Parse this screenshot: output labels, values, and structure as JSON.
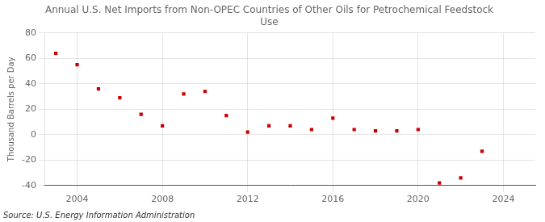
{
  "chart_data": {
    "type": "scatter",
    "title": "Annual U.S. Net Imports from Non-OPEC Countries of Other Oils for Petrochemical Feedstock\nUse",
    "y_label": "Thousand Barrels per Day",
    "annotations": [
      "Source: U.S. Energy Information Administration"
    ],
    "x": [
      2003,
      2004,
      2005,
      2006,
      2007,
      2008,
      2009,
      2010,
      2011,
      2012,
      2013,
      2014,
      2015,
      2016,
      2017,
      2018,
      2019,
      2020,
      2021,
      2022,
      2023
    ],
    "values": [
      64,
      55,
      36,
      29,
      16,
      7,
      32,
      34,
      15,
      2,
      7,
      7,
      4,
      13,
      4,
      3,
      3,
      4,
      -38,
      -34,
      -13
    ],
    "color": "#cc0000",
    "marker": "square",
    "xlim": [
      2002.5,
      2025.5
    ],
    "xticks": [
      2004,
      2008,
      2012,
      2016,
      2020,
      2024
    ],
    "ylim": [
      -40,
      80
    ],
    "yticks": [
      -40,
      -20,
      0,
      20,
      40,
      60,
      80
    ],
    "grid": true
  }
}
